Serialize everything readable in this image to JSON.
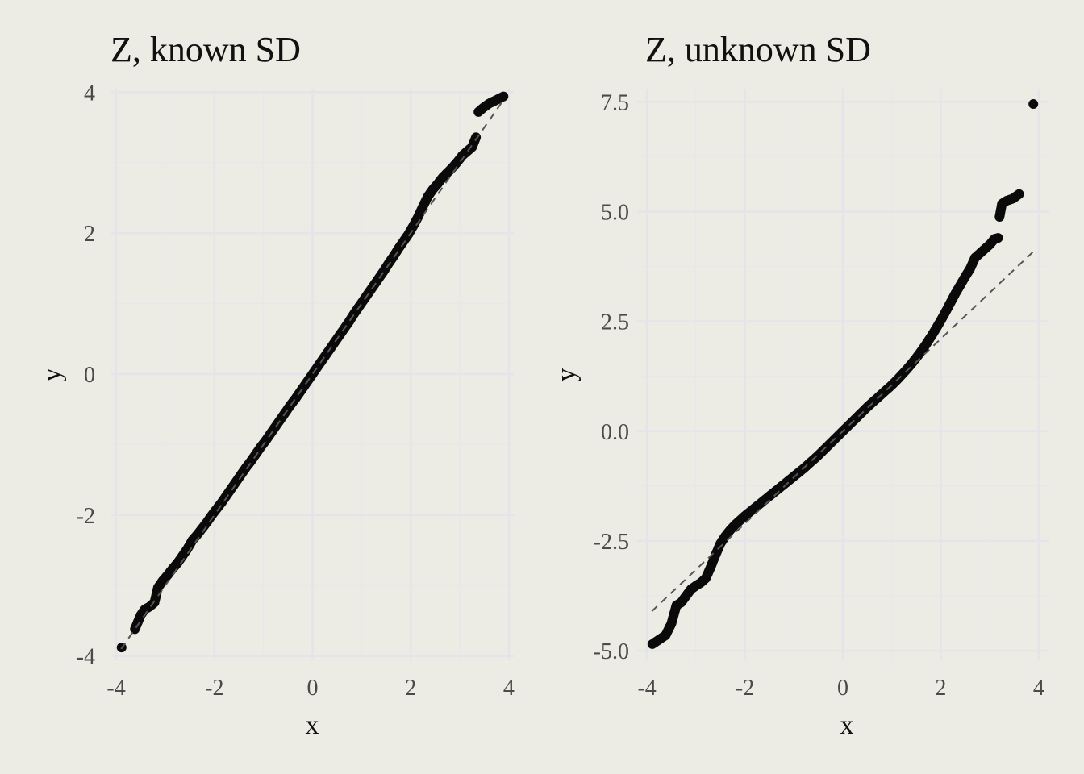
{
  "chart_data": [
    {
      "type": "scatter",
      "title": "Z, known SD",
      "xlabel": "x",
      "ylabel": "y",
      "xlim": [
        -4.1,
        4.1
      ],
      "ylim": [
        -4.05,
        4.05
      ],
      "xticks": [
        -4,
        -2,
        0,
        2,
        4
      ],
      "xtick_labels": [
        "-4",
        "-2",
        "0",
        "2",
        "4"
      ],
      "yticks": [
        -4,
        -2,
        0,
        2,
        4
      ],
      "ytick_labels": [
        "-4",
        "-2",
        "0",
        "2",
        "4"
      ],
      "grid": true,
      "reference_line": {
        "from": [
          -3.9,
          -3.9
        ],
        "to": [
          3.9,
          3.9
        ],
        "style": "dashed"
      },
      "points": [
        [
          -3.89,
          -3.88
        ],
        [
          -3.62,
          -3.62
        ],
        [
          -3.5,
          -3.42
        ],
        [
          -3.42,
          -3.34
        ],
        [
          -3.32,
          -3.3
        ],
        [
          -3.22,
          -3.24
        ],
        [
          -3.15,
          -3.03
        ],
        [
          -3.05,
          -2.93
        ],
        [
          -2.95,
          -2.85
        ],
        [
          -2.85,
          -2.76
        ],
        [
          -2.75,
          -2.68
        ],
        [
          -2.65,
          -2.58
        ],
        [
          -2.55,
          -2.48
        ],
        [
          -2.45,
          -2.36
        ],
        [
          -2.35,
          -2.28
        ],
        [
          -2.25,
          -2.19
        ],
        [
          -2.15,
          -2.1
        ],
        [
          -2.05,
          -2.0
        ],
        [
          -1.95,
          -1.91
        ],
        [
          -1.85,
          -1.82
        ],
        [
          -1.75,
          -1.72
        ],
        [
          -1.65,
          -1.62
        ],
        [
          -1.55,
          -1.52
        ],
        [
          -1.45,
          -1.42
        ],
        [
          -1.35,
          -1.32
        ],
        [
          -1.25,
          -1.23
        ],
        [
          -1.15,
          -1.13
        ],
        [
          -1.05,
          -1.03
        ],
        [
          -0.95,
          -0.94
        ],
        [
          -0.85,
          -0.84
        ],
        [
          -0.75,
          -0.74
        ],
        [
          -0.65,
          -0.64
        ],
        [
          -0.55,
          -0.54
        ],
        [
          -0.45,
          -0.44
        ],
        [
          -0.35,
          -0.35
        ],
        [
          -0.25,
          -0.25
        ],
        [
          -0.15,
          -0.15
        ],
        [
          -0.05,
          -0.05
        ],
        [
          0.05,
          0.05
        ],
        [
          0.15,
          0.15
        ],
        [
          0.25,
          0.25
        ],
        [
          0.35,
          0.35
        ],
        [
          0.45,
          0.45
        ],
        [
          0.55,
          0.55
        ],
        [
          0.65,
          0.65
        ],
        [
          0.75,
          0.75
        ],
        [
          0.85,
          0.86
        ],
        [
          0.95,
          0.96
        ],
        [
          1.05,
          1.06
        ],
        [
          1.15,
          1.16
        ],
        [
          1.25,
          1.26
        ],
        [
          1.35,
          1.36
        ],
        [
          1.45,
          1.46
        ],
        [
          1.55,
          1.57
        ],
        [
          1.65,
          1.67
        ],
        [
          1.75,
          1.78
        ],
        [
          1.85,
          1.88
        ],
        [
          1.95,
          1.98
        ],
        [
          2.05,
          2.1
        ],
        [
          2.15,
          2.23
        ],
        [
          2.25,
          2.38
        ],
        [
          2.35,
          2.52
        ],
        [
          2.45,
          2.62
        ],
        [
          2.55,
          2.7
        ],
        [
          2.65,
          2.79
        ],
        [
          2.75,
          2.86
        ],
        [
          2.85,
          2.93
        ],
        [
          2.95,
          3.01
        ],
        [
          3.05,
          3.1
        ],
        [
          3.15,
          3.16
        ],
        [
          3.25,
          3.22
        ],
        [
          3.33,
          3.36
        ],
        [
          3.38,
          3.72
        ],
        [
          3.48,
          3.78
        ],
        [
          3.6,
          3.84
        ],
        [
          3.89,
          3.94
        ]
      ]
    },
    {
      "type": "scatter",
      "title": "Z, unknown SD",
      "xlabel": "x",
      "ylabel": "y",
      "xlim": [
        -4.2,
        4.2
      ],
      "ylim": [
        -5.2,
        7.8
      ],
      "xticks": [
        -4,
        -2,
        0,
        2,
        4
      ],
      "xtick_labels": [
        "-4",
        "-2",
        "0",
        "2",
        "4"
      ],
      "yticks": [
        -5,
        -2.5,
        0,
        2.5,
        5,
        7.5
      ],
      "ytick_labels": [
        "-5.0",
        "-2.5",
        "0.0",
        "2.5",
        "5.0",
        "7.5"
      ],
      "grid": true,
      "reference_line": {
        "from": [
          -3.9,
          -4.1
        ],
        "to": [
          3.9,
          4.1
        ],
        "style": "dashed"
      },
      "points": [
        [
          -3.89,
          -4.85
        ],
        [
          -3.62,
          -4.65
        ],
        [
          -3.5,
          -4.38
        ],
        [
          -3.4,
          -3.97
        ],
        [
          -3.3,
          -3.9
        ],
        [
          -3.2,
          -3.75
        ],
        [
          -3.1,
          -3.6
        ],
        [
          -3.0,
          -3.52
        ],
        [
          -2.9,
          -3.45
        ],
        [
          -2.8,
          -3.35
        ],
        [
          -2.7,
          -3.1
        ],
        [
          -2.6,
          -2.82
        ],
        [
          -2.5,
          -2.56
        ],
        [
          -2.4,
          -2.39
        ],
        [
          -2.3,
          -2.25
        ],
        [
          -2.2,
          -2.13
        ],
        [
          -2.1,
          -2.03
        ],
        [
          -2.0,
          -1.93
        ],
        [
          -1.9,
          -1.84
        ],
        [
          -1.8,
          -1.75
        ],
        [
          -1.7,
          -1.66
        ],
        [
          -1.6,
          -1.57
        ],
        [
          -1.5,
          -1.48
        ],
        [
          -1.4,
          -1.39
        ],
        [
          -1.3,
          -1.3
        ],
        [
          -1.2,
          -1.21
        ],
        [
          -1.1,
          -1.12
        ],
        [
          -1.0,
          -1.03
        ],
        [
          -0.9,
          -0.94
        ],
        [
          -0.8,
          -0.85
        ],
        [
          -0.7,
          -0.75
        ],
        [
          -0.6,
          -0.65
        ],
        [
          -0.5,
          -0.55
        ],
        [
          -0.4,
          -0.44
        ],
        [
          -0.3,
          -0.33
        ],
        [
          -0.2,
          -0.22
        ],
        [
          -0.1,
          -0.11
        ],
        [
          0.0,
          0.0
        ],
        [
          0.1,
          0.11
        ],
        [
          0.2,
          0.22
        ],
        [
          0.3,
          0.33
        ],
        [
          0.4,
          0.44
        ],
        [
          0.5,
          0.55
        ],
        [
          0.6,
          0.65
        ],
        [
          0.7,
          0.75
        ],
        [
          0.8,
          0.85
        ],
        [
          0.9,
          0.95
        ],
        [
          1.0,
          1.05
        ],
        [
          1.1,
          1.16
        ],
        [
          1.2,
          1.28
        ],
        [
          1.3,
          1.4
        ],
        [
          1.4,
          1.53
        ],
        [
          1.5,
          1.67
        ],
        [
          1.6,
          1.82
        ],
        [
          1.7,
          1.98
        ],
        [
          1.8,
          2.15
        ],
        [
          1.9,
          2.33
        ],
        [
          2.0,
          2.52
        ],
        [
          2.1,
          2.72
        ],
        [
          2.2,
          2.93
        ],
        [
          2.3,
          3.14
        ],
        [
          2.4,
          3.33
        ],
        [
          2.5,
          3.52
        ],
        [
          2.6,
          3.7
        ],
        [
          2.7,
          3.95
        ],
        [
          2.8,
          4.05
        ],
        [
          2.9,
          4.15
        ],
        [
          3.0,
          4.25
        ],
        [
          3.1,
          4.38
        ],
        [
          3.17,
          4.4
        ],
        [
          3.2,
          4.88
        ],
        [
          3.25,
          5.18
        ],
        [
          3.35,
          5.25
        ],
        [
          3.48,
          5.3
        ],
        [
          3.6,
          5.4
        ],
        [
          3.89,
          7.45
        ]
      ]
    }
  ]
}
